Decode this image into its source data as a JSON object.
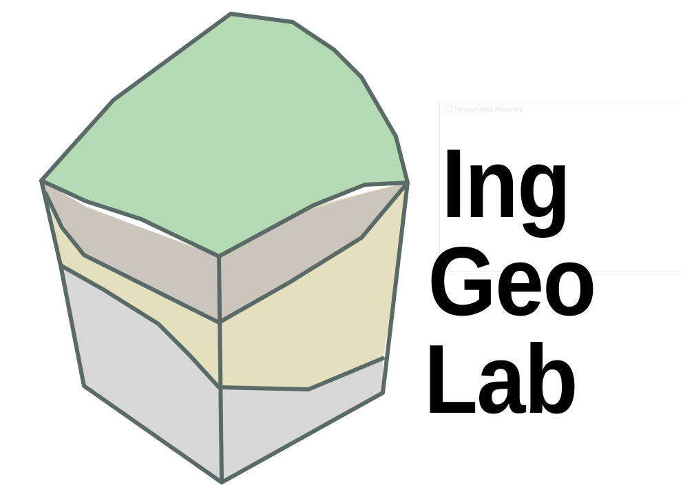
{
  "logo": {
    "line1": "Ing",
    "line2": "Geo",
    "line3": "Lab",
    "text_color": "#000000"
  },
  "background_window": {
    "title": "Herramienta Recortes"
  },
  "block_colors": {
    "top_soil": "#b3dab2",
    "upper_layer": "#ccc5bb",
    "middle_layer": "#e3dfbf",
    "bedrock": "#d7d7d7",
    "outline": "#5a6a67"
  }
}
